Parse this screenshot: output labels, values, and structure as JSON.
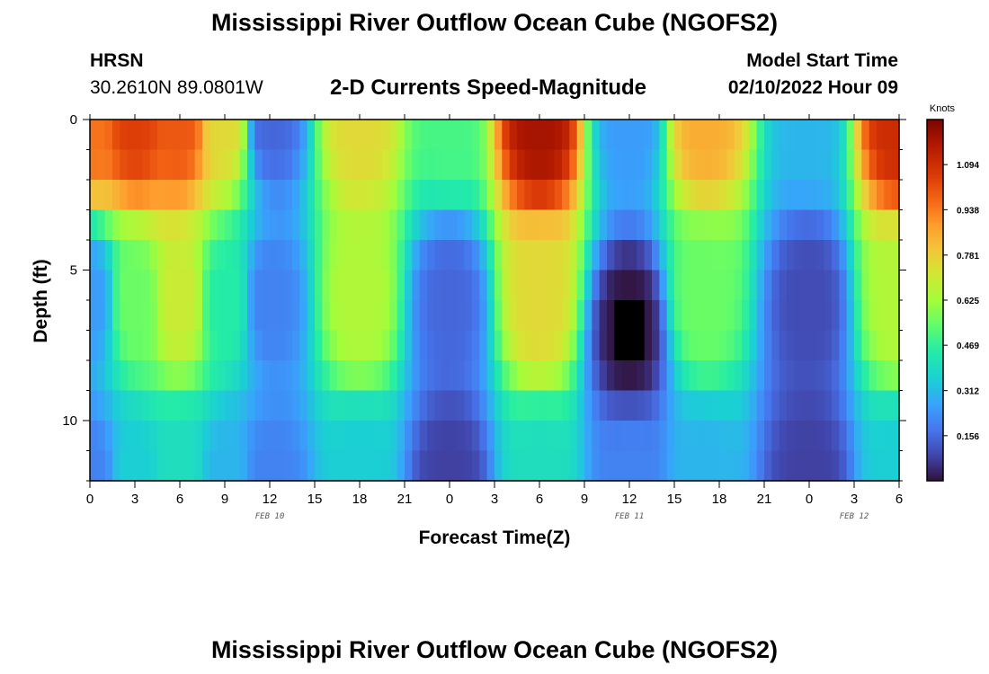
{
  "page": {
    "title": "Mississippi River Outflow Ocean Cube (NGOFS2)",
    "title_repeat": "Mississippi River Outflow Ocean Cube (NGOFS2)",
    "station": "HRSN",
    "coords": "30.2610N  89.0801W",
    "subtitle": "2-D Currents Speed-Magnitude",
    "model_start_label": "Model Start Time",
    "model_start_value": "02/10/2022 Hour 09"
  },
  "chart_data": {
    "type": "heatmap",
    "title": "2-D Currents Speed-Magnitude",
    "xlabel": "Forecast Time(Z)",
    "ylabel": "Depth (ft)",
    "x_range_hours": [
      0,
      54
    ],
    "y_range_ft": [
      0,
      12
    ],
    "x_ticks": [
      {
        "h": 0,
        "label": "0"
      },
      {
        "h": 3,
        "label": "3"
      },
      {
        "h": 6,
        "label": "6"
      },
      {
        "h": 9,
        "label": "9"
      },
      {
        "h": 12,
        "label": "12"
      },
      {
        "h": 15,
        "label": "15"
      },
      {
        "h": 18,
        "label": "18"
      },
      {
        "h": 21,
        "label": "21"
      },
      {
        "h": 24,
        "label": "0"
      },
      {
        "h": 27,
        "label": "3"
      },
      {
        "h": 30,
        "label": "6"
      },
      {
        "h": 33,
        "label": "9"
      },
      {
        "h": 36,
        "label": "12"
      },
      {
        "h": 39,
        "label": "15"
      },
      {
        "h": 42,
        "label": "18"
      },
      {
        "h": 45,
        "label": "21"
      },
      {
        "h": 48,
        "label": "0"
      },
      {
        "h": 51,
        "label": "3"
      },
      {
        "h": 54,
        "label": "6"
      }
    ],
    "date_labels": [
      {
        "h": 12,
        "label": "FEB 10"
      },
      {
        "h": 36,
        "label": "FEB 11"
      },
      {
        "h": 51,
        "label": "FEB 12"
      }
    ],
    "y_ticks": [
      {
        "ft": 0,
        "label": "0"
      },
      {
        "ft": 5,
        "label": "5"
      },
      {
        "ft": 10,
        "label": "10"
      }
    ],
    "colorbar": {
      "unit": "Knots",
      "min": 0.0,
      "max": 1.25,
      "labels": [
        "1.094",
        "0.938",
        "0.781",
        "0.625",
        "0.469",
        "0.312",
        "0.156"
      ],
      "label_values": [
        1.094,
        0.938,
        0.781,
        0.625,
        0.469,
        0.312,
        0.156
      ]
    },
    "speed_profile_knots": [
      {
        "h": 0.0,
        "d": 0.0,
        "v": 0.95
      },
      {
        "h": 0.0,
        "d": 6.0,
        "v": 0.25
      },
      {
        "h": 0.0,
        "d": 12.0,
        "v": 0.2
      },
      {
        "h": 3.0,
        "d": 0.0,
        "v": 1.05
      },
      {
        "h": 3.0,
        "d": 6.0,
        "v": 0.55
      },
      {
        "h": 3.0,
        "d": 12.0,
        "v": 0.35
      },
      {
        "h": 6.0,
        "d": 0.0,
        "v": 1.0
      },
      {
        "h": 6.0,
        "d": 6.0,
        "v": 0.7
      },
      {
        "h": 6.0,
        "d": 12.0,
        "v": 0.4
      },
      {
        "h": 9.0,
        "d": 0.0,
        "v": 0.75
      },
      {
        "h": 9.0,
        "d": 6.0,
        "v": 0.45
      },
      {
        "h": 9.0,
        "d": 12.0,
        "v": 0.3
      },
      {
        "h": 12.0,
        "d": 0.0,
        "v": 0.15
      },
      {
        "h": 12.0,
        "d": 6.0,
        "v": 0.2
      },
      {
        "h": 12.0,
        "d": 12.0,
        "v": 0.2
      },
      {
        "h": 18.0,
        "d": 0.0,
        "v": 0.75
      },
      {
        "h": 18.0,
        "d": 6.0,
        "v": 0.65
      },
      {
        "h": 18.0,
        "d": 12.0,
        "v": 0.35
      },
      {
        "h": 24.0,
        "d": 0.0,
        "v": 0.5
      },
      {
        "h": 24.0,
        "d": 6.0,
        "v": 0.15
      },
      {
        "h": 24.0,
        "d": 12.0,
        "v": 0.08
      },
      {
        "h": 30.0,
        "d": 0.0,
        "v": 1.18
      },
      {
        "h": 30.0,
        "d": 6.0,
        "v": 0.75
      },
      {
        "h": 30.0,
        "d": 12.0,
        "v": 0.4
      },
      {
        "h": 36.0,
        "d": 0.0,
        "v": 0.25
      },
      {
        "h": 36.0,
        "d": 7.0,
        "v": 0.0
      },
      {
        "h": 36.0,
        "d": 12.0,
        "v": 0.2
      },
      {
        "h": 41.0,
        "d": 0.0,
        "v": 0.85
      },
      {
        "h": 41.0,
        "d": 6.0,
        "v": 0.55
      },
      {
        "h": 41.0,
        "d": 12.0,
        "v": 0.3
      },
      {
        "h": 48.0,
        "d": 0.0,
        "v": 0.3
      },
      {
        "h": 48.0,
        "d": 6.0,
        "v": 0.1
      },
      {
        "h": 48.0,
        "d": 12.0,
        "v": 0.08
      },
      {
        "h": 54.0,
        "d": 0.0,
        "v": 1.1
      },
      {
        "h": 54.0,
        "d": 6.0,
        "v": 0.65
      },
      {
        "h": 54.0,
        "d": 12.0,
        "v": 0.35
      }
    ]
  }
}
